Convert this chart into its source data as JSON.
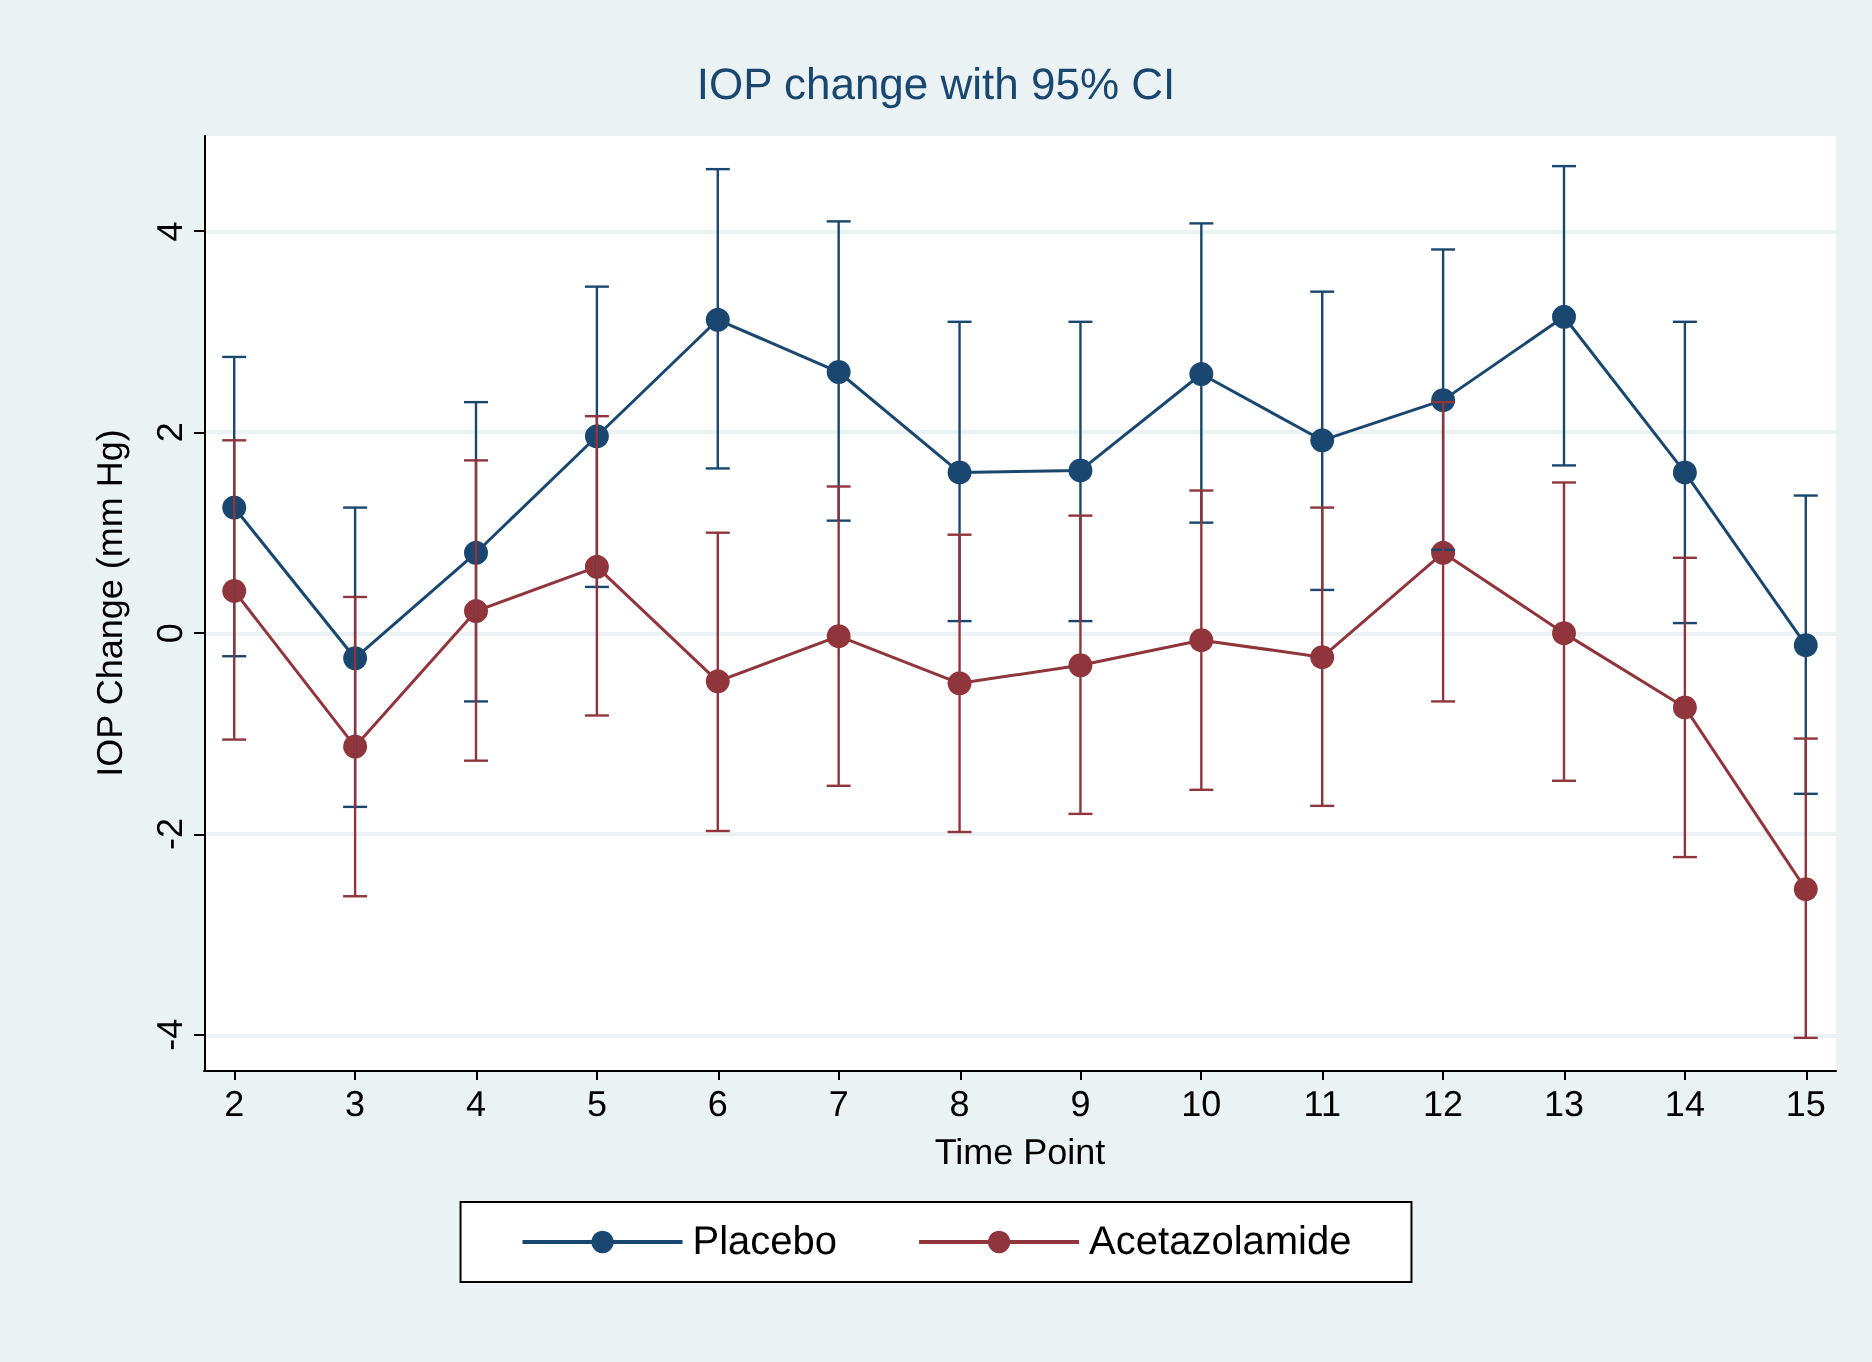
{
  "chart_data": {
    "type": "line",
    "title": "IOP change with 95% CI",
    "xlabel": "Time Point",
    "ylabel": "IOP Change (mm Hg)",
    "x": [
      2,
      3,
      4,
      5,
      6,
      7,
      8,
      9,
      10,
      11,
      12,
      13,
      14,
      15
    ],
    "series": [
      {
        "name": "Placebo",
        "color": "#1a476f",
        "values": [
          1.25,
          -0.25,
          0.8,
          1.96,
          3.12,
          2.6,
          1.6,
          1.62,
          2.58,
          1.92,
          2.32,
          3.15,
          1.6,
          -0.12
        ],
        "errors": [
          [
            -0.23,
            2.75
          ],
          [
            -1.73,
            1.25
          ],
          [
            -0.68,
            2.3
          ],
          [
            0.46,
            3.45
          ],
          [
            1.64,
            4.62
          ],
          [
            1.12,
            4.1
          ],
          [
            0.12,
            3.1
          ],
          [
            0.12,
            3.1
          ],
          [
            1.1,
            4.08
          ],
          [
            0.43,
            3.4
          ],
          [
            0.83,
            3.82
          ],
          [
            1.67,
            4.65
          ],
          [
            0.1,
            3.1
          ],
          [
            -1.6,
            1.37
          ]
        ]
      },
      {
        "name": "Acetazolamide",
        "color": "#90353b",
        "values": [
          0.42,
          -1.13,
          0.22,
          0.66,
          -0.48,
          -0.03,
          -0.5,
          -0.32,
          -0.07,
          -0.24,
          0.8,
          0.0,
          -0.74,
          -2.55
        ],
        "errors": [
          [
            -1.06,
            1.92
          ],
          [
            -2.62,
            0.36
          ],
          [
            -1.27,
            1.72
          ],
          [
            -0.82,
            2.16
          ],
          [
            -1.97,
            1.0
          ],
          [
            -1.52,
            1.46
          ],
          [
            -1.98,
            0.98
          ],
          [
            -1.8,
            1.17
          ],
          [
            -1.56,
            1.42
          ],
          [
            -1.72,
            1.25
          ],
          [
            -0.68,
            2.3
          ],
          [
            -1.47,
            1.5
          ],
          [
            -2.23,
            0.75
          ],
          [
            -4.03,
            -1.05
          ]
        ]
      }
    ],
    "xlim": [
      1.75,
      15.25
    ],
    "xticks": [
      2,
      3,
      4,
      5,
      6,
      7,
      8,
      9,
      10,
      11,
      12,
      13,
      14,
      15
    ],
    "ylim": [
      -4.35,
      4.95
    ],
    "yticks": [
      -4,
      -2,
      0,
      2,
      4
    ],
    "grid": "y",
    "legend": "bottom",
    "marker": "circle",
    "line_style": "solid"
  }
}
